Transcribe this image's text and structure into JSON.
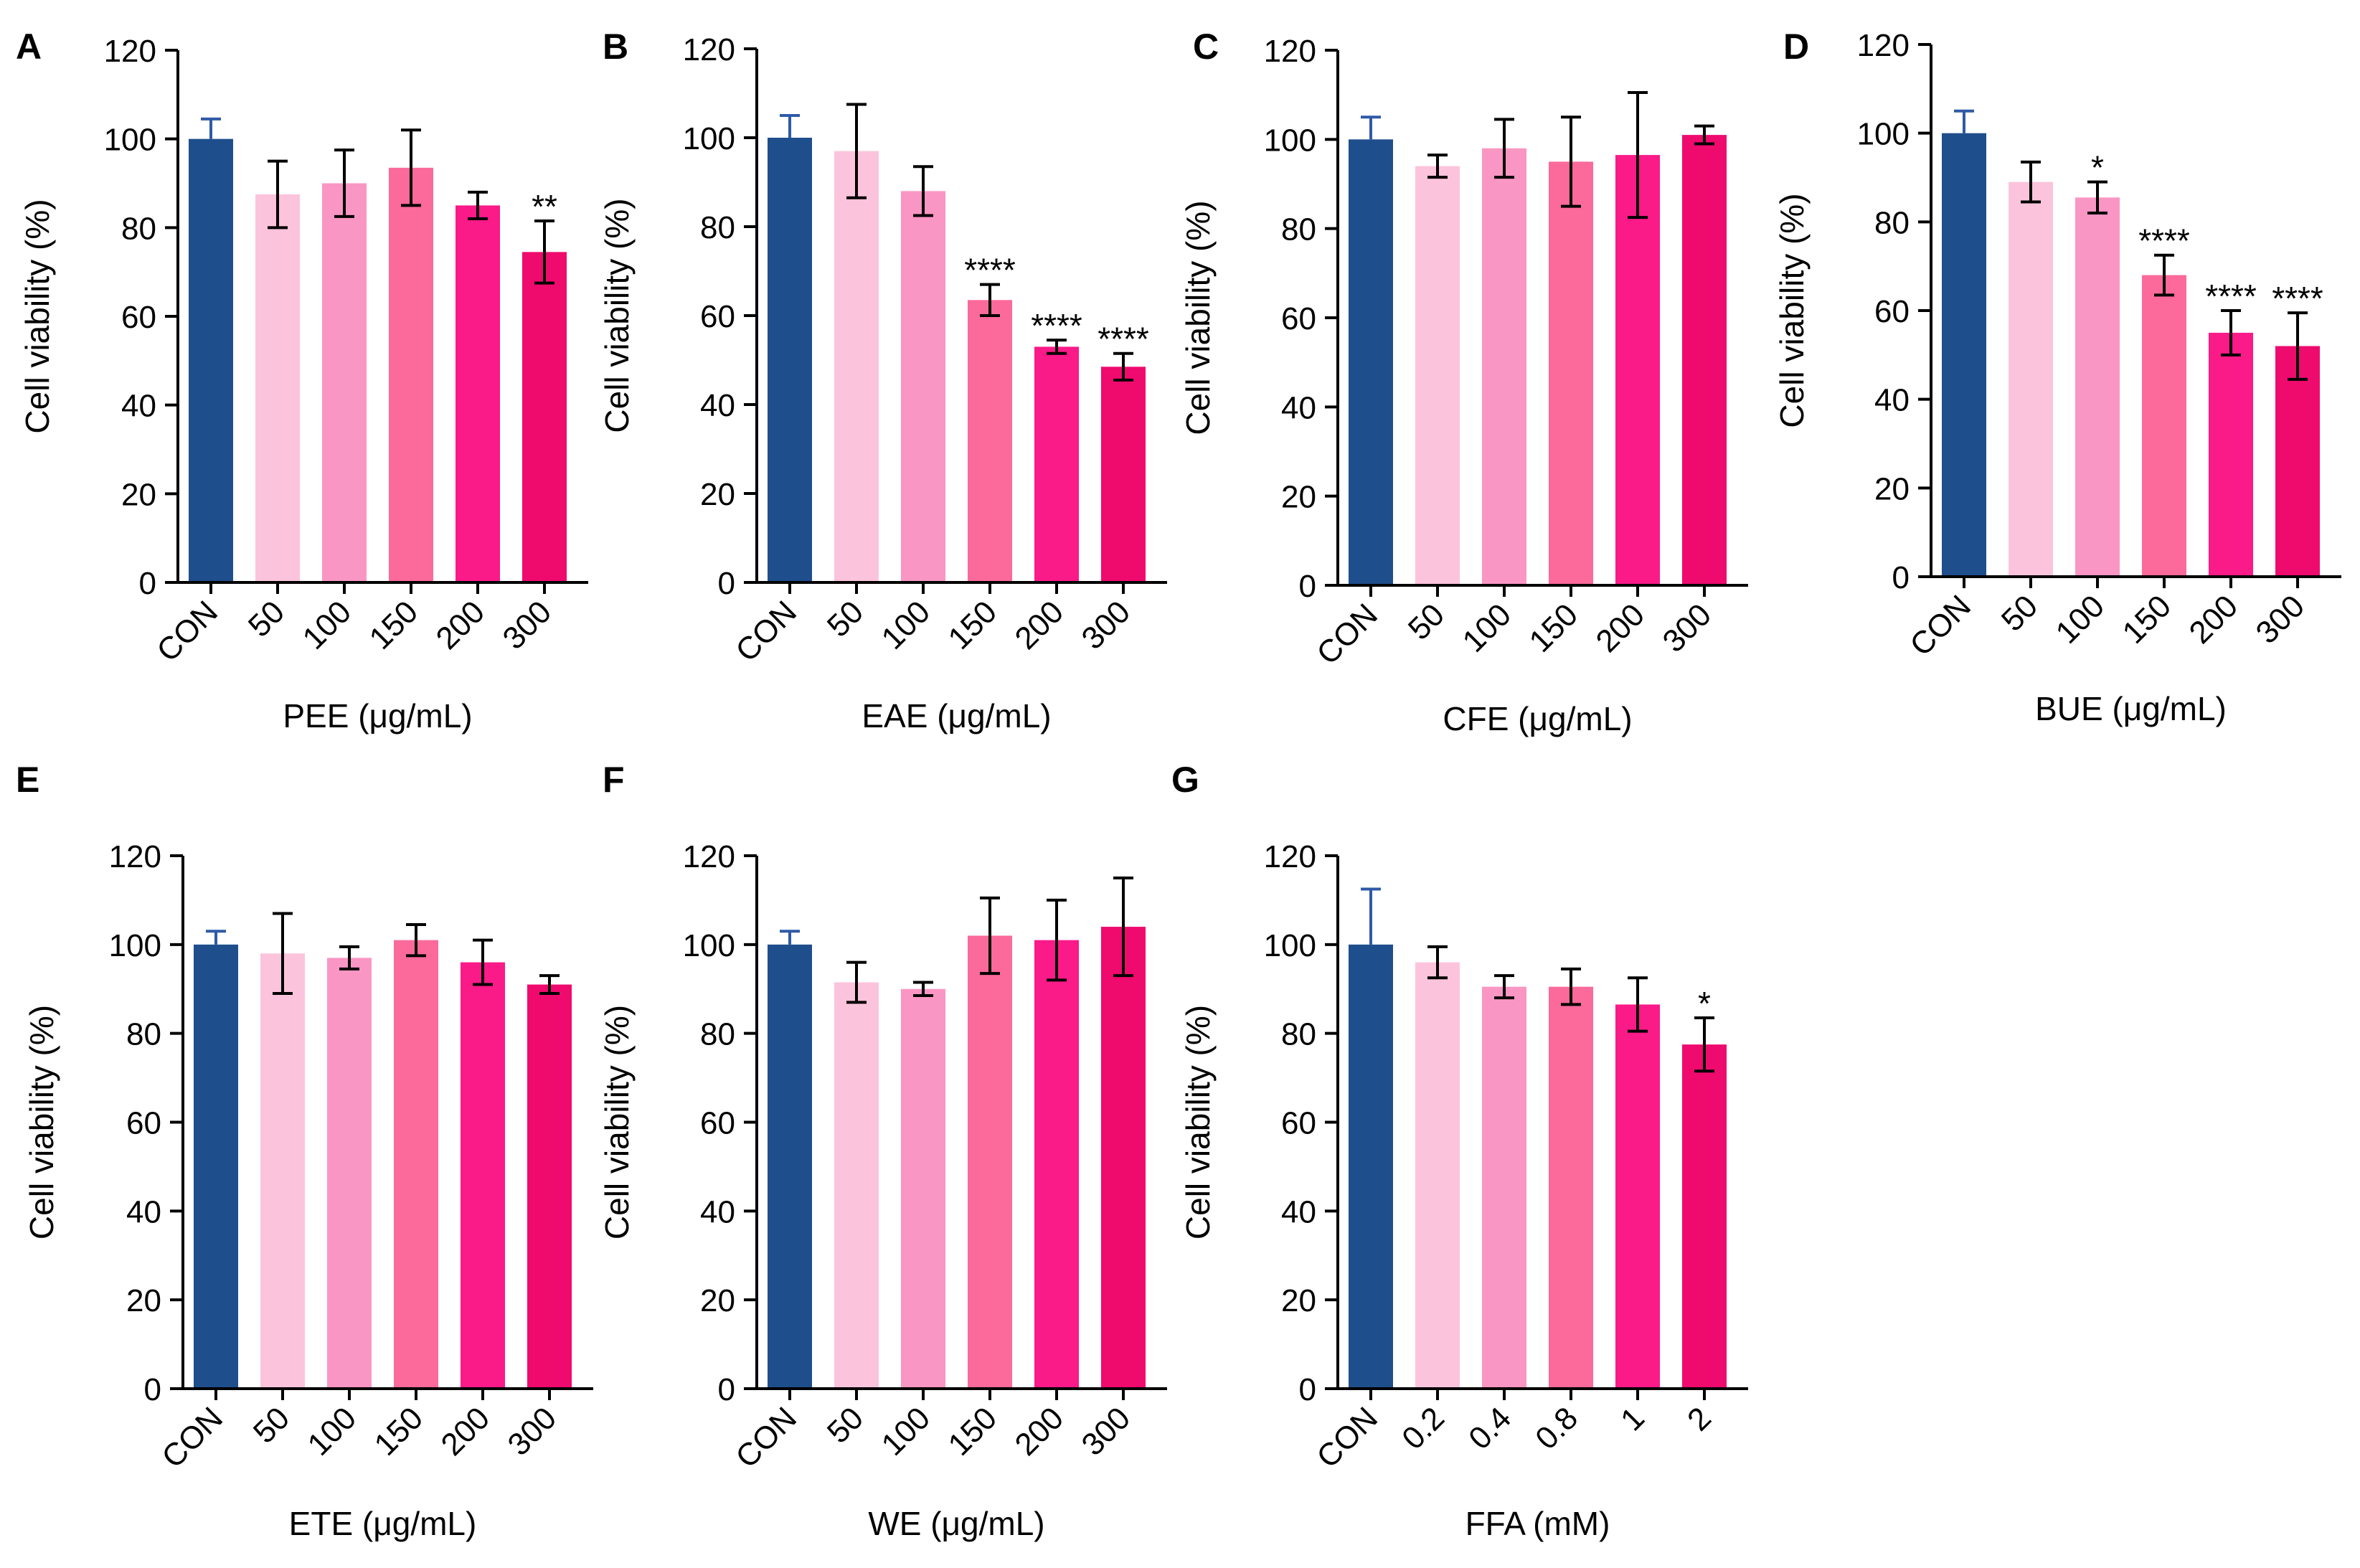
{
  "palette": [
    "#1f4e8c",
    "#fcc4dc",
    "#fa96c4",
    "#fb6a9a",
    "#fa1a88",
    "#ef0a6e"
  ],
  "chart_data": [
    {
      "panel": "A",
      "type": "bar",
      "xlabel": "PEE (μg/mL)",
      "ylabel": "Cell viability (%)",
      "ylim": [
        0,
        120
      ],
      "yticks": [
        0,
        20,
        40,
        60,
        80,
        100,
        120
      ],
      "categories": [
        "CON",
        "50",
        "100",
        "150",
        "200",
        "300"
      ],
      "values": [
        100,
        87.5,
        90,
        93.5,
        85,
        74.5
      ],
      "errors": [
        4.5,
        7.5,
        7.5,
        8.5,
        3,
        7
      ],
      "significance": [
        "",
        "",
        "",
        "",
        "",
        "**"
      ]
    },
    {
      "panel": "B",
      "type": "bar",
      "xlabel": "EAE (μg/mL)",
      "ylabel": "Cell viability (%)",
      "ylim": [
        0,
        120
      ],
      "yticks": [
        0,
        20,
        40,
        60,
        80,
        100,
        120
      ],
      "categories": [
        "CON",
        "50",
        "100",
        "150",
        "200",
        "300"
      ],
      "values": [
        100,
        97,
        88,
        63.5,
        53,
        48.5
      ],
      "errors": [
        5,
        10.5,
        5.5,
        3.5,
        1.5,
        3
      ],
      "significance": [
        "",
        "",
        "",
        "****",
        "****",
        "****"
      ]
    },
    {
      "panel": "C",
      "type": "bar",
      "xlabel": "CFE (μg/mL)",
      "ylabel": "Cell viability (%)",
      "ylim": [
        0,
        120
      ],
      "yticks": [
        0,
        20,
        40,
        60,
        80,
        100,
        120
      ],
      "categories": [
        "CON",
        "50",
        "100",
        "150",
        "200",
        "300"
      ],
      "values": [
        100,
        94,
        98,
        95,
        96.5,
        101
      ],
      "errors": [
        5,
        2.5,
        6.5,
        10,
        14,
        2
      ],
      "significance": [
        "",
        "",
        "",
        "",
        "",
        ""
      ]
    },
    {
      "panel": "D",
      "type": "bar",
      "xlabel": "BUE (μg/mL)",
      "ylabel": "Cell viability (%)",
      "ylim": [
        0,
        120
      ],
      "yticks": [
        0,
        20,
        40,
        60,
        80,
        100,
        120
      ],
      "categories": [
        "CON",
        "50",
        "100",
        "150",
        "200",
        "300"
      ],
      "values": [
        100,
        89,
        85.5,
        68,
        55,
        52
      ],
      "errors": [
        5,
        4.5,
        3.5,
        4.5,
        5,
        7.5
      ],
      "significance": [
        "",
        "",
        "*",
        "****",
        "****",
        "****"
      ]
    },
    {
      "panel": "E",
      "type": "bar",
      "xlabel": "ETE (μg/mL)",
      "ylabel": "Cell viability (%)",
      "ylim": [
        0,
        120
      ],
      "yticks": [
        0,
        20,
        40,
        60,
        80,
        100,
        120
      ],
      "categories": [
        "CON",
        "50",
        "100",
        "150",
        "200",
        "300"
      ],
      "values": [
        100,
        98,
        97,
        101,
        96,
        91
      ],
      "errors": [
        3,
        9,
        2.5,
        3.5,
        5,
        2
      ],
      "significance": [
        "",
        "",
        "",
        "",
        "",
        ""
      ]
    },
    {
      "panel": "F",
      "type": "bar",
      "xlabel": "WE (μg/mL)",
      "ylabel": "Cell viability (%)",
      "ylim": [
        0,
        120
      ],
      "yticks": [
        0,
        20,
        40,
        60,
        80,
        100,
        120
      ],
      "categories": [
        "CON",
        "50",
        "100",
        "150",
        "200",
        "300"
      ],
      "values": [
        100,
        91.5,
        90,
        102,
        101,
        104
      ],
      "errors": [
        3,
        4.5,
        1.5,
        8.5,
        9,
        11
      ],
      "significance": [
        "",
        "",
        "",
        "",
        "",
        ""
      ]
    },
    {
      "panel": "G",
      "type": "bar",
      "xlabel": "FFA (mM)",
      "ylabel": "Cell viability (%)",
      "ylim": [
        0,
        120
      ],
      "yticks": [
        0,
        20,
        40,
        60,
        80,
        100,
        120
      ],
      "categories": [
        "CON",
        "0.2",
        "0.4",
        "0.8",
        "1",
        "2"
      ],
      "values": [
        100,
        96,
        90.5,
        90.5,
        86.5,
        77.5
      ],
      "errors": [
        12.5,
        3.5,
        2.5,
        4,
        6,
        6
      ],
      "significance": [
        "",
        "",
        "",
        "",
        "",
        "*"
      ]
    }
  ]
}
